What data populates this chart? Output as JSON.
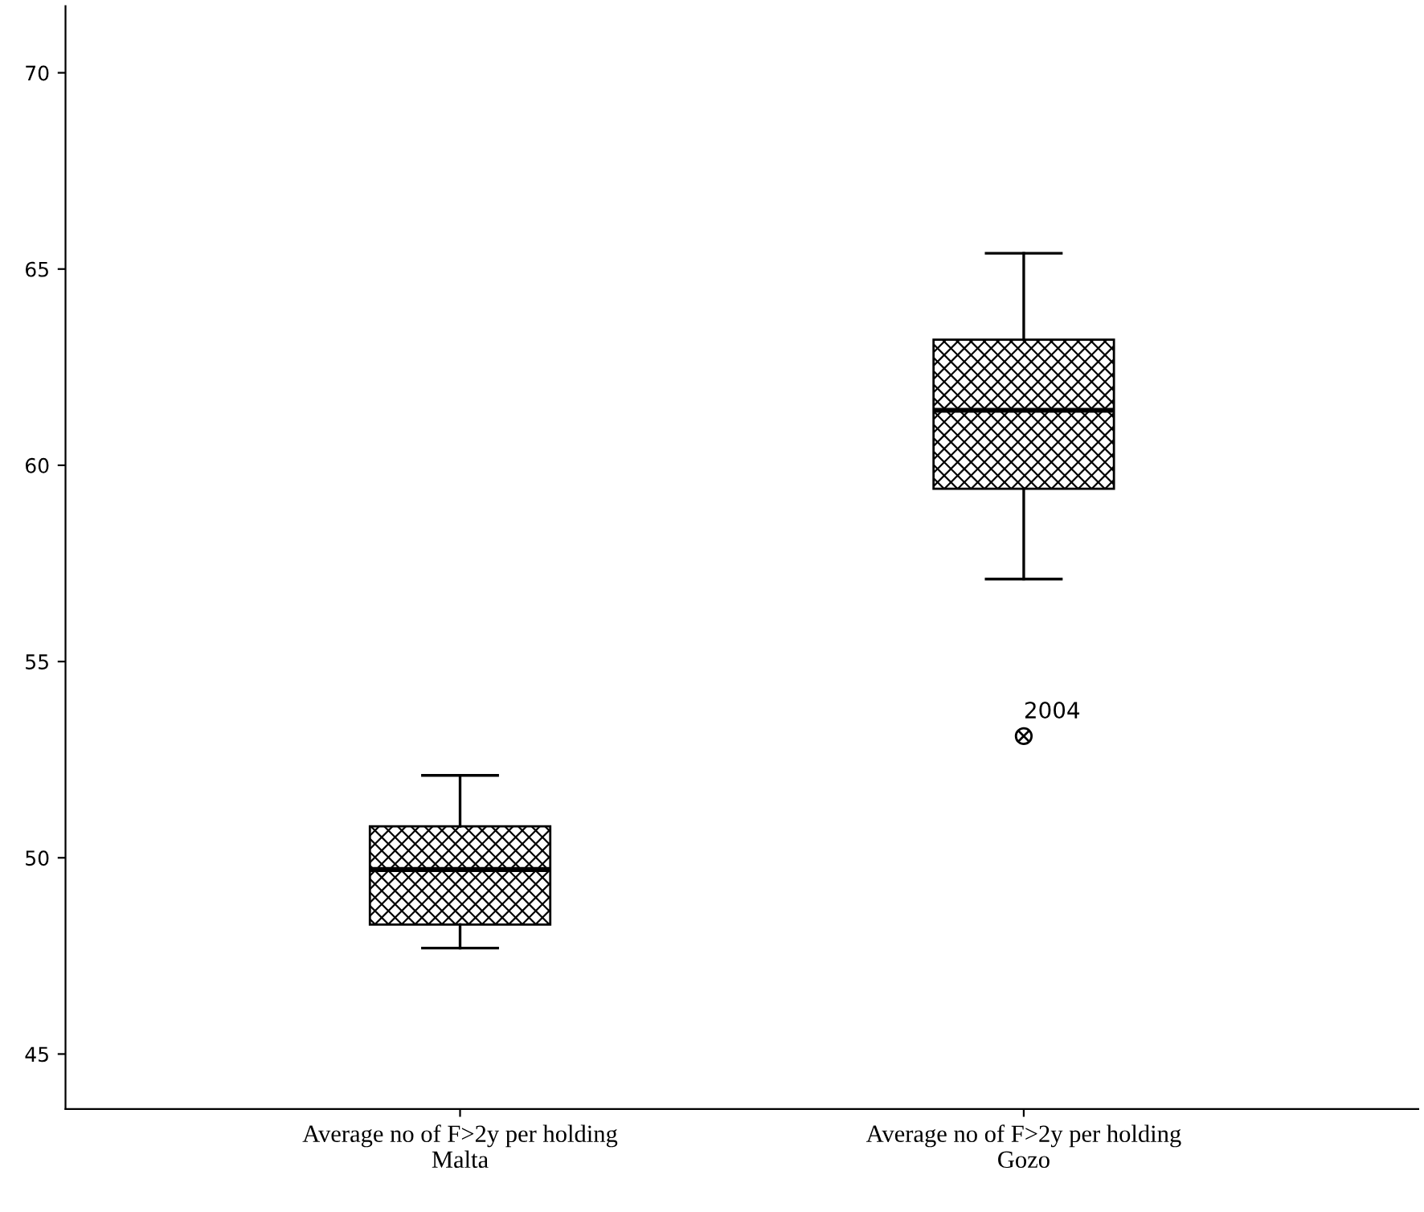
{
  "chart_data": {
    "type": "box",
    "categories": [
      "Average no of F>2y per holding\nMalta",
      "Average no of F>2y per holding\nGozo"
    ],
    "boxes": [
      {
        "low": 47.7,
        "q1": 48.3,
        "median": 49.7,
        "q3": 50.8,
        "high": 52.1
      },
      {
        "low": 57.1,
        "q1": 59.4,
        "median": 61.4,
        "q3": 63.2,
        "high": 65.4,
        "outliers": [
          53.1
        ]
      }
    ],
    "annotations": [
      "2004"
    ],
    "ylim": [
      43.6,
      71.7
    ],
    "yticks": [
      45,
      50,
      55,
      60,
      65,
      70
    ],
    "grid": false
  }
}
